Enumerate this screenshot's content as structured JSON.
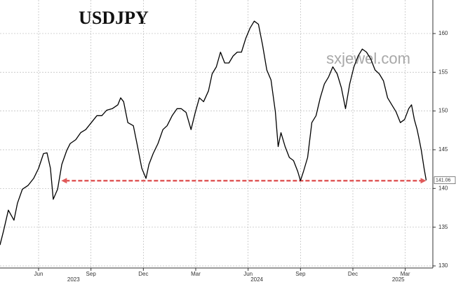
{
  "chart_data": {
    "type": "line",
    "title": "USDJPY",
    "watermark": "sxjewel.com",
    "x": [
      2.79,
      2.99,
      3.27,
      3.59,
      3.79,
      4.07,
      4.4,
      4.72,
      5.0,
      5.28,
      5.48,
      5.68,
      5.84,
      6.09,
      6.33,
      6.61,
      6.81,
      7.13,
      7.41,
      7.7,
      8.02,
      8.34,
      8.62,
      8.9,
      9.22,
      9.54,
      9.7,
      9.87,
      10.11,
      10.43,
      10.67,
      10.91,
      11.15,
      11.32,
      11.56,
      11.84,
      12.12,
      12.36,
      12.65,
      12.93,
      13.17,
      13.45,
      13.73,
      13.97,
      14.21,
      14.45,
      14.73,
      14.94,
      15.18,
      15.42,
      15.66,
      15.9,
      16.14,
      16.38,
      16.62,
      16.87,
      17.11,
      17.35,
      17.59,
      17.83,
      18.07,
      18.31,
      18.56,
      18.72,
      18.88,
      19.12,
      19.36,
      19.6,
      19.84,
      20.0,
      20.17,
      20.41,
      20.65,
      20.89,
      21.13,
      21.37,
      21.61,
      21.85,
      22.1,
      22.34,
      22.58,
      22.82,
      23.06,
      23.3,
      23.54,
      23.78,
      24.03,
      24.27,
      24.51,
      24.75,
      24.99,
      25.23,
      25.47,
      25.72,
      25.96,
      26.2,
      26.36,
      26.52,
      26.68,
      26.8,
      26.92,
      27.08,
      27.2
    ],
    "series": [
      {
        "name": "USDJPY",
        "color": "#000000",
        "values": [
          132.7,
          134.5,
          137.2,
          135.9,
          138.1,
          139.9,
          140.4,
          141.3,
          142.6,
          144.5,
          144.6,
          142.6,
          138.6,
          139.9,
          143.1,
          144.9,
          145.8,
          146.3,
          147.2,
          147.6,
          148.5,
          149.4,
          149.4,
          150.1,
          150.3,
          150.8,
          151.7,
          151.2,
          148.5,
          148.1,
          145.4,
          142.6,
          141.3,
          143.1,
          144.5,
          145.8,
          147.6,
          148.1,
          149.4,
          150.3,
          150.3,
          149.8,
          147.6,
          149.8,
          151.7,
          151.2,
          152.6,
          154.8,
          155.7,
          157.6,
          156.2,
          156.2,
          157.1,
          157.6,
          157.6,
          159.4,
          160.7,
          161.6,
          161.2,
          158.5,
          155.3,
          154.0,
          149.9,
          145.4,
          147.2,
          145.4,
          144.0,
          143.6,
          142.2,
          141.0,
          142.2,
          144.0,
          148.5,
          149.4,
          151.7,
          153.5,
          154.4,
          155.7,
          154.8,
          153.0,
          150.3,
          153.5,
          155.7,
          157.1,
          158.0,
          157.6,
          156.7,
          155.3,
          154.8,
          153.9,
          151.7,
          150.8,
          149.9,
          148.5,
          148.9,
          150.3,
          150.8,
          148.9,
          147.6,
          146.3,
          144.9,
          142.6,
          141.06
        ]
      }
    ],
    "last_value_label": "141.06",
    "hline": {
      "value": 141,
      "x_start": 6.3,
      "color": "#e05a5a"
    },
    "xlim": [
      2.79,
      27.5
    ],
    "xticks": [
      {
        "value": 5,
        "label": "Jun"
      },
      {
        "value": 8,
        "label": "Sep"
      },
      {
        "value": 11,
        "label": "Dec"
      },
      {
        "value": 14,
        "label": "Mar"
      },
      {
        "value": 17,
        "label": "Jun"
      },
      {
        "value": 20,
        "label": "Sep"
      },
      {
        "value": 23,
        "label": "Dec"
      },
      {
        "value": 26,
        "label": "Mar"
      }
    ],
    "year_ticks": [
      {
        "value": 7,
        "label": "2023"
      },
      {
        "value": 17.5,
        "label": "2024"
      },
      {
        "value": 25.6,
        "label": "2025"
      }
    ],
    "ylim": [
      129.73,
      164.33
    ],
    "yticks": [
      130,
      135,
      140,
      145,
      150,
      155,
      160
    ],
    "grid": true
  }
}
